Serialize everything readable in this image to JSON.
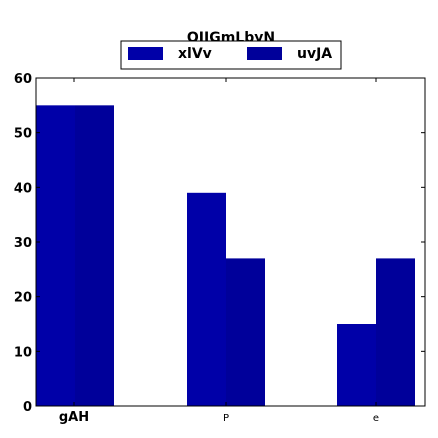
{
  "chart_data": {
    "type": "bar",
    "title": "OIJGmLbyN",
    "categories": [
      "gAH",
      "P",
      "e"
    ],
    "series": [
      {
        "name": "xlVv",
        "values": [
          55,
          39,
          15
        ],
        "color": "#0000a8"
      },
      {
        "name": "uvJA",
        "values": [
          55,
          27,
          27
        ],
        "color": "#00009a"
      }
    ],
    "ylim": [
      0,
      60
    ],
    "yticks": [
      "0",
      "10",
      "20",
      "30",
      "40",
      "50",
      "60"
    ],
    "legend_position": "top-center",
    "grid": false
  }
}
